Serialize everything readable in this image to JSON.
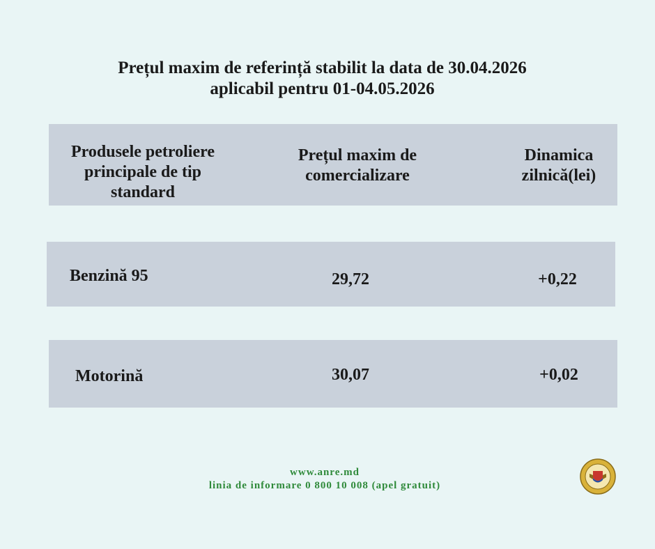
{
  "header": {
    "title_line1": "Prețul maxim de referință stabilit la data de 30.04.2026",
    "title_line2": "aplicabil pentru 01-04.05.2026"
  },
  "table": {
    "columns": [
      "Produsele petroliere principale de tip standard",
      "Prețul maxim de comercializare",
      "Dinamica zilnică(lei)"
    ],
    "rows": [
      [
        "Benzină 95",
        "29,72",
        "+0,22"
      ],
      [
        "Motorină",
        "30,07",
        "+0,02"
      ]
    ]
  },
  "footer": {
    "website": "www.anre.md",
    "hotline": "linia de informare 0 800 10 008 (apel gratuit)"
  }
}
